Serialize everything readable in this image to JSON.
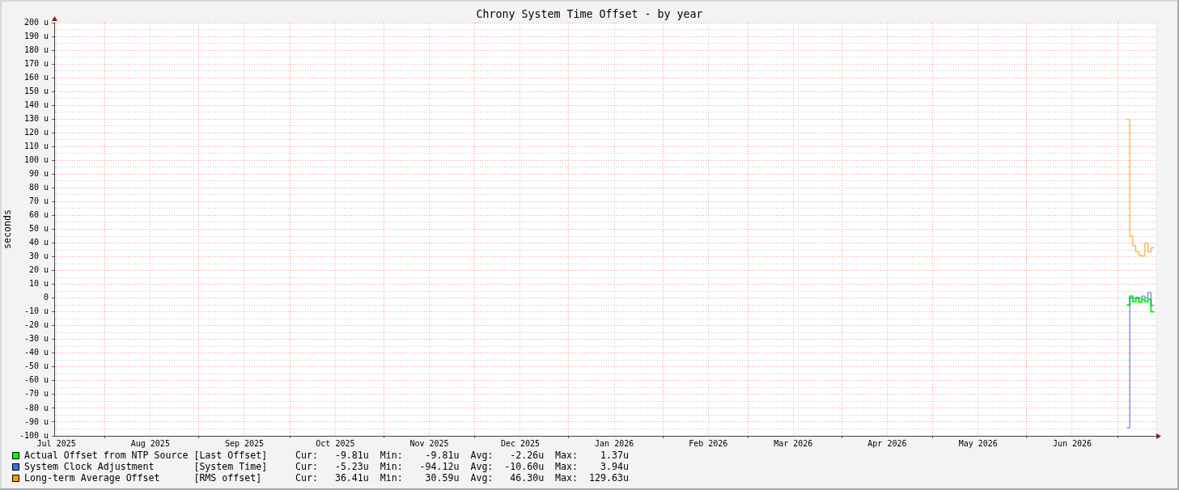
{
  "chart_data": {
    "type": "step",
    "title": "Chrony System Time Offset - by year",
    "ylabel": "seconds",
    "x": [
      "2026-07-04",
      "2026-07-05",
      "2026-07-06",
      "2026-07-07",
      "2026-07-08",
      "2026-07-09",
      "2026-07-10",
      "2026-07-11",
      "2026-07-12"
    ],
    "series": [
      {
        "name": "Actual Offset from NTP Source",
        "color": "#00ff00",
        "values": [
          -5,
          1.37,
          -2.5,
          0,
          -3,
          -1,
          -2.5,
          -1,
          -9.81
        ]
      },
      {
        "name": "System Clock Adjustment",
        "color": "#4169e1",
        "values": [
          -94.12,
          0,
          0,
          0.5,
          0,
          1.5,
          0,
          3.94,
          -5.23
        ]
      },
      {
        "name": "Long-term Average Offset",
        "color": "#ff9900",
        "values": [
          129.63,
          45,
          38,
          33.5,
          31,
          30.59,
          40,
          33.5,
          36.41
        ]
      }
    ],
    "annotations": [
      "[Last Offset]     Cur:   -9.81u  Min:    -9.81u  Avg:   -2.26u  Max:    1.37u",
      "[System Time]     Cur:   -5.23u  Min:   -94.12u  Avg:  -10.60u  Max:    3.94u",
      "[RMS offset]      Cur:   36.41u  Min:    30.59u  Avg:   46.30u  Max:  129.63u"
    ],
    "xlim": [
      "2025-07-15T07:00",
      "2026-07-13T12:00"
    ],
    "xticks": [
      {
        "value": "2025-07-16",
        "label": "Jul 2025"
      },
      {
        "value": "2025-08-01",
        "label": null
      },
      {
        "value": "2025-08-16",
        "label": "Aug 2025"
      },
      {
        "value": "2025-09-01",
        "label": null
      },
      {
        "value": "2025-09-16",
        "label": "Sep 2025"
      },
      {
        "value": "2025-10-01",
        "label": null
      },
      {
        "value": "2025-10-16",
        "label": "Oct 2025"
      },
      {
        "value": "2025-11-01",
        "label": null
      },
      {
        "value": "2025-11-16",
        "label": "Nov 2025"
      },
      {
        "value": "2025-12-01",
        "label": null
      },
      {
        "value": "2025-12-16",
        "label": "Dec 2025"
      },
      {
        "value": "2026-01-01",
        "label": null
      },
      {
        "value": "2026-01-16",
        "label": "Jan 2026"
      },
      {
        "value": "2026-02-01",
        "label": null
      },
      {
        "value": "2026-02-16",
        "label": "Feb 2026"
      },
      {
        "value": "2026-03-01",
        "label": null
      },
      {
        "value": "2026-03-16",
        "label": "Mar 2026"
      },
      {
        "value": "2026-04-01",
        "label": null
      },
      {
        "value": "2026-04-16",
        "label": "Apr 2026"
      },
      {
        "value": "2026-05-01",
        "label": null
      },
      {
        "value": "2026-05-16",
        "label": "May 2026"
      },
      {
        "value": "2026-06-01",
        "label": null
      },
      {
        "value": "2026-06-16",
        "label": "Jun 2026"
      },
      {
        "value": "2026-07-01",
        "label": null
      }
    ],
    "ylim": [
      -100,
      200
    ],
    "yticks": [
      {
        "value": -100,
        "label": "-100 u"
      },
      {
        "value": -95,
        "label": null
      },
      {
        "value": -90,
        "label": "-90 u"
      },
      {
        "value": -85,
        "label": null
      },
      {
        "value": -80,
        "label": "-80 u"
      },
      {
        "value": -75,
        "label": null
      },
      {
        "value": -70,
        "label": "-70 u"
      },
      {
        "value": -65,
        "label": null
      },
      {
        "value": -60,
        "label": "-60 u"
      },
      {
        "value": -55,
        "label": null
      },
      {
        "value": -50,
        "label": "-50 u"
      },
      {
        "value": -45,
        "label": null
      },
      {
        "value": -40,
        "label": "-40 u"
      },
      {
        "value": -35,
        "label": null
      },
      {
        "value": -30,
        "label": "-30 u"
      },
      {
        "value": -25,
        "label": null
      },
      {
        "value": -20,
        "label": "-20 u"
      },
      {
        "value": -15,
        "label": null
      },
      {
        "value": -10,
        "label": "-10 u"
      },
      {
        "value": -5,
        "label": null
      },
      0,
      {
        "value": 5,
        "label": null
      },
      {
        "value": 10,
        "label": "10 u"
      },
      {
        "value": 15,
        "label": null
      },
      {
        "value": 20,
        "label": "20 u"
      },
      {
        "value": 25,
        "label": null
      },
      {
        "value": 30,
        "label": "30 u"
      },
      {
        "value": 35,
        "label": null
      },
      {
        "value": 40,
        "label": "40 u"
      },
      {
        "value": 45,
        "label": null
      },
      {
        "value": 50,
        "label": "50 u"
      },
      {
        "value": 55,
        "label": null
      },
      {
        "value": 60,
        "label": "60 u"
      },
      {
        "value": 65,
        "label": null
      },
      {
        "value": 70,
        "label": "70 u"
      },
      {
        "value": 75,
        "label": null
      },
      {
        "value": 80,
        "label": "80 u"
      },
      {
        "value": 85,
        "label": null
      },
      {
        "value": 90,
        "label": "90 u"
      },
      {
        "value": 95,
        "label": null
      },
      {
        "value": 100,
        "label": "100 u"
      },
      {
        "value": 105,
        "label": null
      },
      {
        "value": 110,
        "label": "110 u"
      },
      {
        "value": 115,
        "label": null
      },
      {
        "value": 120,
        "label": "120 u"
      },
      {
        "value": 125,
        "label": null
      },
      {
        "value": 130,
        "label": "130 u"
      },
      {
        "value": 135,
        "label": null
      },
      {
        "value": 140,
        "label": "140 u"
      },
      {
        "value": 145,
        "label": null
      },
      {
        "value": 150,
        "label": "150 u"
      },
      {
        "value": 155,
        "label": null
      },
      {
        "value": 160,
        "label": "160 u"
      },
      {
        "value": 165,
        "label": null
      },
      {
        "value": 170,
        "label": "170 u"
      },
      {
        "value": 175,
        "label": null
      },
      {
        "value": 180,
        "label": "180 u"
      },
      {
        "value": 185,
        "label": null
      },
      {
        "value": 190,
        "label": "190 u"
      },
      {
        "value": 195,
        "label": null
      },
      {
        "value": 200,
        "label": "200 u"
      }
    ],
    "grid": true,
    "legend": "bottom"
  }
}
